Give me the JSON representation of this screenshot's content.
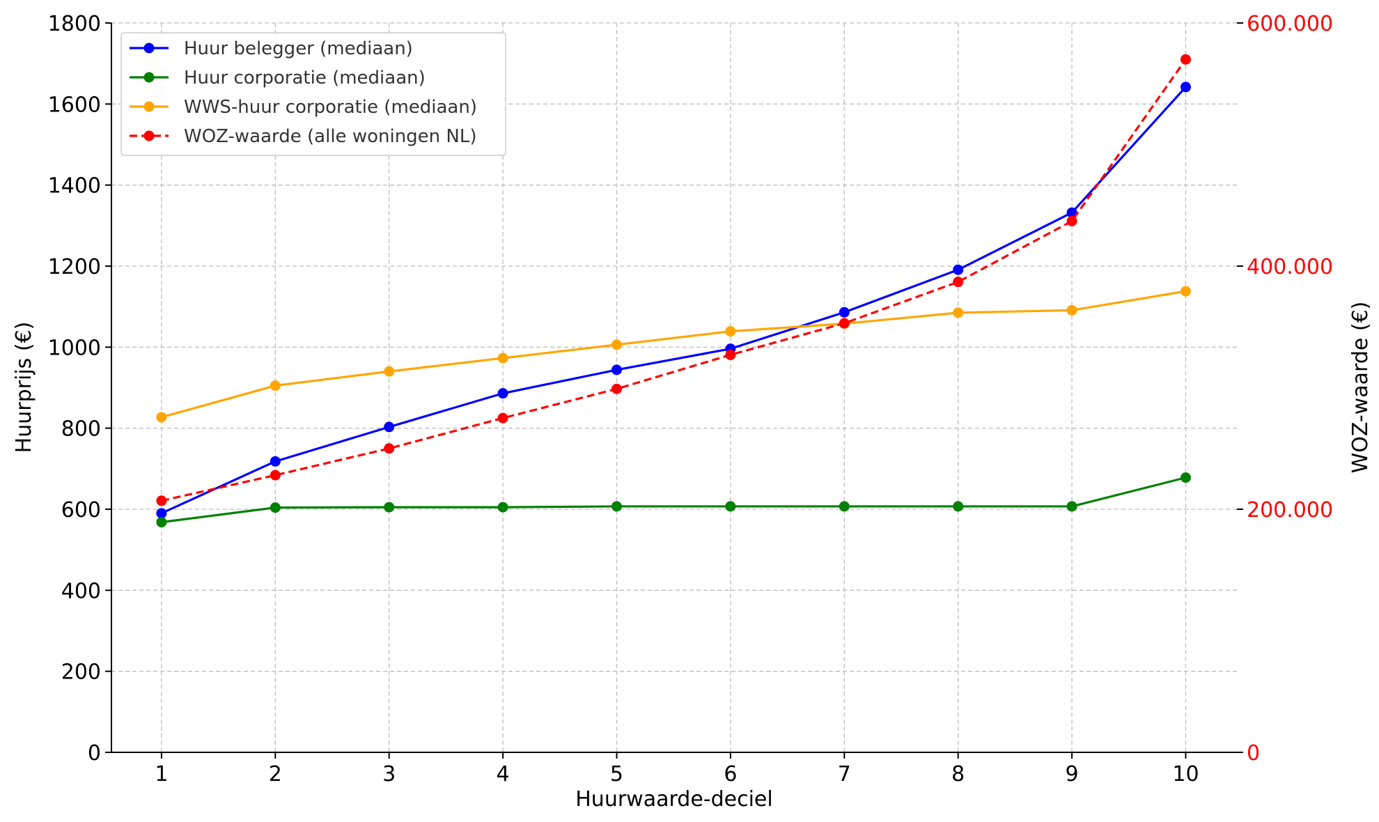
{
  "chart_data": {
    "type": "line",
    "xlabel": "Huurwaarde-deciel",
    "ylabel_left": "Huurprijs (€)",
    "ylabel_right": "WOZ-waarde (€)",
    "x": [
      1,
      2,
      3,
      4,
      5,
      6,
      7,
      8,
      9,
      10
    ],
    "x_tick_labels": [
      "1",
      "2",
      "3",
      "4",
      "5",
      "6",
      "7",
      "8",
      "9",
      "10"
    ],
    "xlim": [
      0.56,
      10.45
    ],
    "ylim_left": [
      0,
      1800
    ],
    "ylim_right": [
      0,
      600000
    ],
    "y_left_ticks": [
      0,
      200,
      400,
      600,
      800,
      1000,
      1200,
      1400,
      1600,
      1800
    ],
    "y_left_tick_labels": [
      "0",
      "200",
      "400",
      "600",
      "800",
      "1000",
      "1200",
      "1400",
      "1600",
      "1800"
    ],
    "y_right_ticks": [
      0,
      200000,
      400000,
      600000
    ],
    "y_right_tick_labels": [
      "0",
      "200.000",
      "400.000",
      "600.000"
    ],
    "grid": true,
    "legend_position": "top-left",
    "series": [
      {
        "name": "Huur belegger (mediaan)",
        "axis": "left",
        "color": "#0000ff",
        "dashed": false,
        "values": [
          590,
          718,
          803,
          886,
          944,
          996,
          1086,
          1191,
          1332,
          1642
        ]
      },
      {
        "name": "Huur corporatie (mediaan)",
        "axis": "left",
        "color": "#008000",
        "dashed": false,
        "values": [
          568,
          604,
          605,
          605,
          607,
          607,
          607,
          607,
          607,
          678
        ]
      },
      {
        "name": "WWS-huur corporatie (mediaan)",
        "axis": "left",
        "color": "#ffa500",
        "dashed": false,
        "values": [
          827,
          905,
          940,
          973,
          1006,
          1039,
          1058,
          1085,
          1091,
          1138
        ]
      },
      {
        "name": "WOZ-waarde (alle woningen NL)",
        "axis": "right",
        "color": "#ff0000",
        "dashed": true,
        "values": [
          207000,
          228000,
          250000,
          275000,
          299000,
          327000,
          353000,
          387000,
          437000,
          570000
        ]
      }
    ],
    "right_axis_color": "#ff0000"
  }
}
